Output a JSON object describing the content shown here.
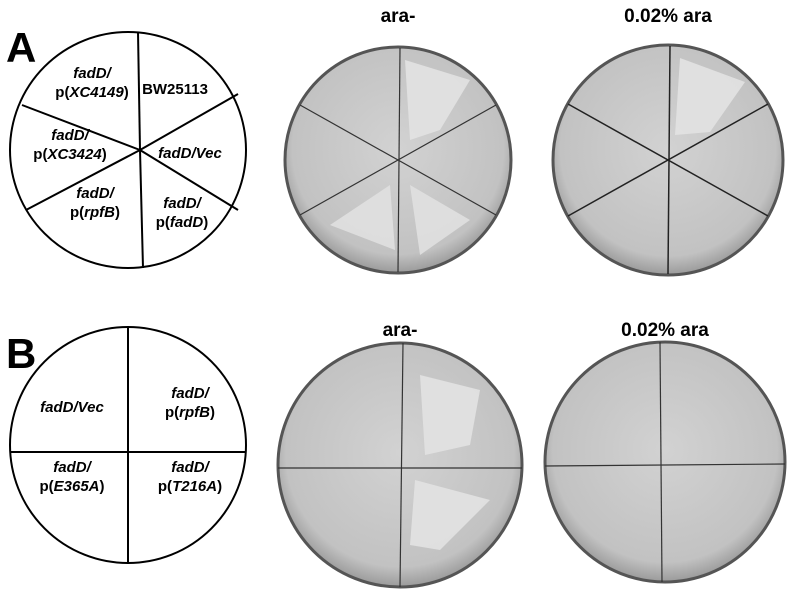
{
  "panels": [
    {
      "letter": "A",
      "conditions": [
        "ara-",
        "0.02% ara"
      ],
      "sectors": [
        {
          "lines": [
            [
              {
                "t": "fadD/",
                "i": true
              }
            ],
            [
              {
                "t": "p(",
                "i": false
              },
              {
                "t": "XC4149",
                "i": true
              },
              {
                "t": ")",
                "i": false
              }
            ]
          ]
        },
        {
          "lines": [
            [
              {
                "t": "BW25113",
                "i": false
              }
            ]
          ]
        },
        {
          "lines": [
            [
              {
                "t": "fadD/",
                "i": true
              }
            ],
            [
              {
                "t": "p(",
                "i": false
              },
              {
                "t": "XC3424",
                "i": true
              },
              {
                "t": ")",
                "i": false
              }
            ]
          ]
        },
        {
          "lines": [
            [
              {
                "t": "fadD/Vec",
                "i": true
              }
            ]
          ]
        },
        {
          "lines": [
            [
              {
                "t": "fadD/",
                "i": true
              }
            ],
            [
              {
                "t": "p(",
                "i": false
              },
              {
                "t": "rpfB",
                "i": true
              },
              {
                "t": ")",
                "i": false
              }
            ]
          ]
        },
        {
          "lines": [
            [
              {
                "t": "fadD/",
                "i": true
              }
            ],
            [
              {
                "t": "p(",
                "i": false
              },
              {
                "t": "fadD",
                "i": true
              },
              {
                "t": ")",
                "i": false
              }
            ]
          ]
        }
      ]
    },
    {
      "letter": "B",
      "conditions": [
        "ara-",
        "0.02% ara"
      ],
      "sectors": [
        {
          "lines": [
            [
              {
                "t": "fadD/Vec",
                "i": true
              }
            ]
          ]
        },
        {
          "lines": [
            [
              {
                "t": "fadD/",
                "i": true
              }
            ],
            [
              {
                "t": "p(",
                "i": false
              },
              {
                "t": "rpfB",
                "i": true
              },
              {
                "t": ")",
                "i": false
              }
            ]
          ]
        },
        {
          "lines": [
            [
              {
                "t": "fadD/",
                "i": true
              }
            ],
            [
              {
                "t": "p(",
                "i": false
              },
              {
                "t": "E365A",
                "i": true
              },
              {
                "t": ")",
                "i": false
              }
            ]
          ]
        },
        {
          "lines": [
            [
              {
                "t": "fadD/",
                "i": true
              }
            ],
            [
              {
                "t": "p(",
                "i": false
              },
              {
                "t": "T216A",
                "i": true
              },
              {
                "t": ")",
                "i": false
              }
            ]
          ]
        }
      ]
    }
  ]
}
